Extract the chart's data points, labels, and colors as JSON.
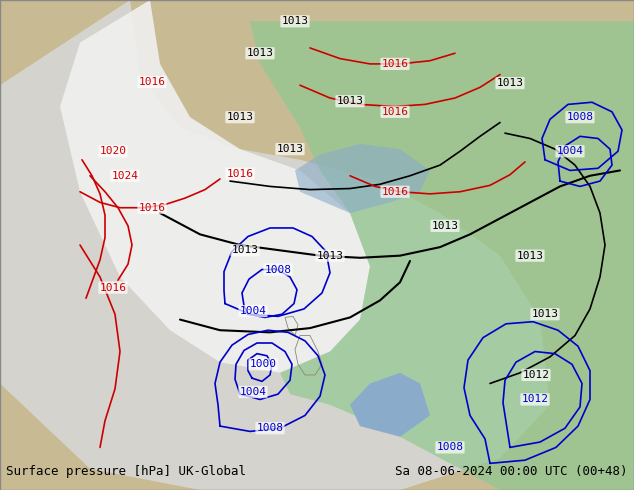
{
  "title_left": "Surface pressure [hPa] UK-Global",
  "title_right": "Sa 08-06-2024 00:00 UTC (00+48)",
  "bg_color": "#c8c0a0",
  "map_bg": "#c8c0a0",
  "sea_color": "#a0b8d0",
  "land_color": "#c8c080",
  "forecast_area_color": "#90d090",
  "grey_area_color": "#d0d0d0",
  "white_area_color": "#f0f0f0",
  "contour_colors_black": [
    "#000000"
  ],
  "contour_colors_blue": [
    "#0000cc"
  ],
  "contour_colors_red": [
    "#cc0000"
  ],
  "font_size_labels": 9,
  "font_size_title": 9,
  "pressure_labels_black": [
    "1013",
    "1013",
    "1013",
    "1013",
    "1012",
    "1013"
  ],
  "pressure_labels_blue": [
    "1008",
    "1004",
    "1000",
    "1004",
    "1008",
    "1012"
  ],
  "pressure_labels_red": [
    "1016",
    "1024",
    "1020",
    "1016",
    "1016"
  ]
}
